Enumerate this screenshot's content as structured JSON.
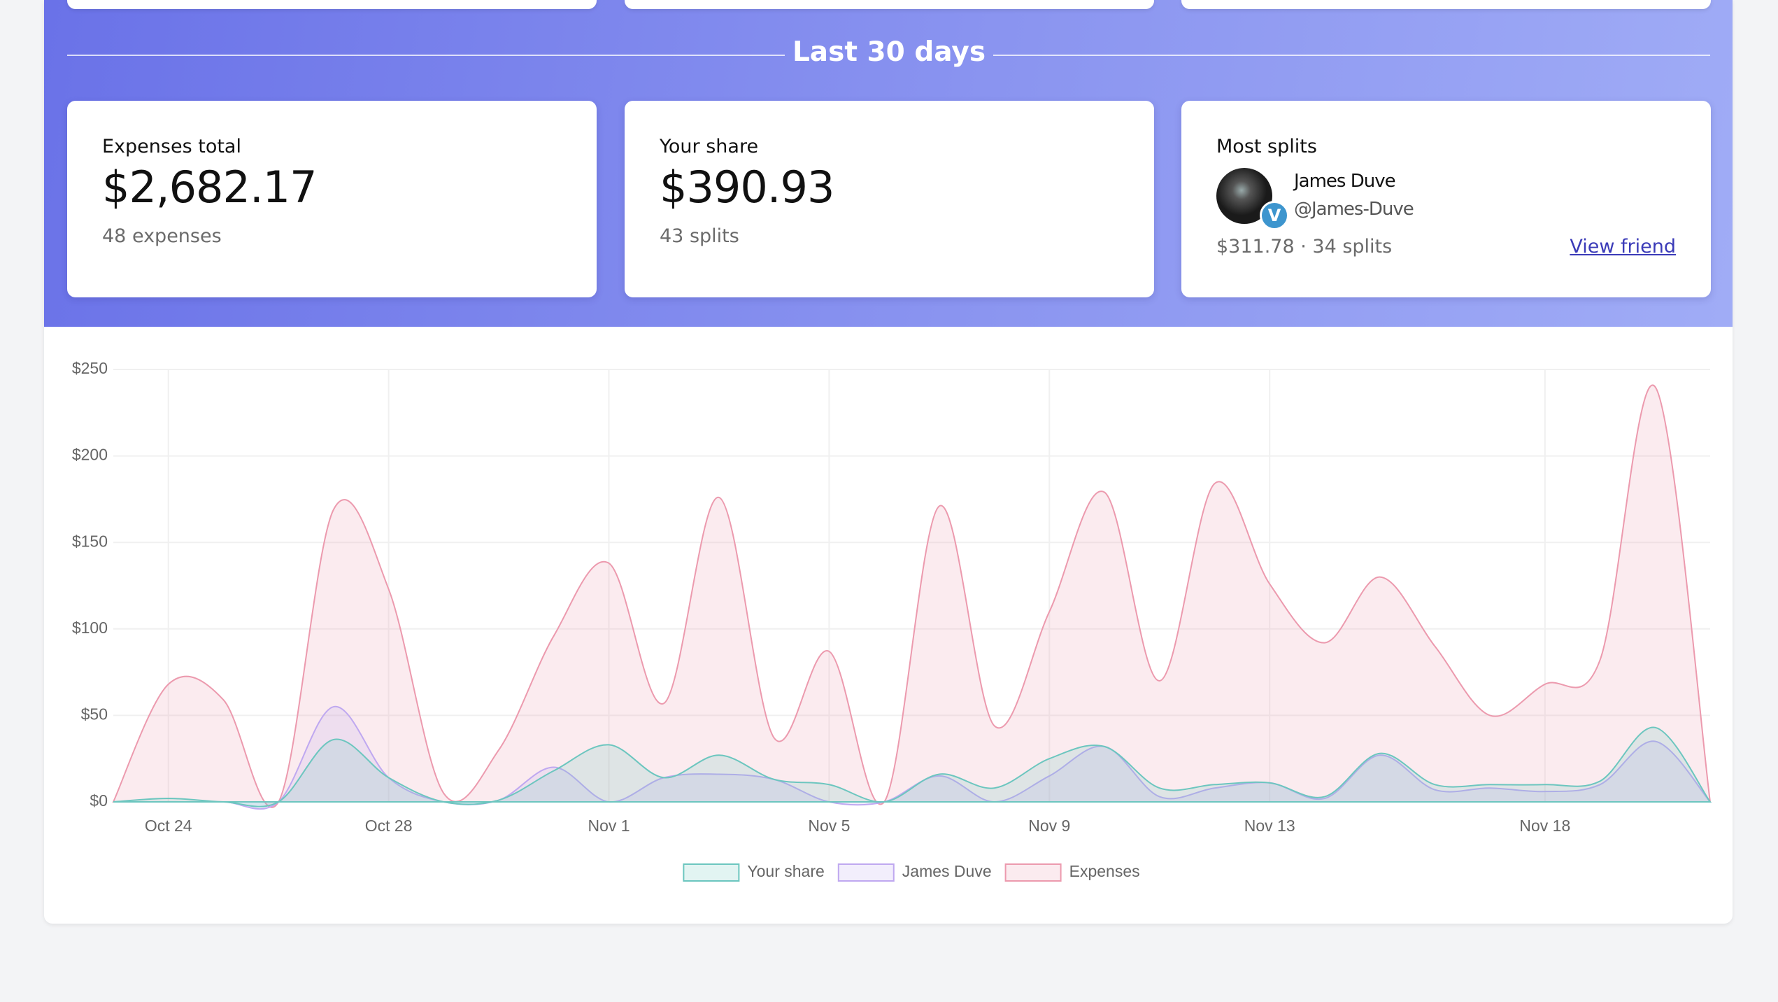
{
  "section_title": "Last 30 days",
  "cards": [
    {
      "label": "Expenses total",
      "value": "$2,682.17",
      "detail": "48 expenses"
    },
    {
      "label": "Your share",
      "value": "$390.93",
      "detail": "43 splits"
    },
    {
      "label": "Most splits",
      "name": "James Duve",
      "handle": "@James-Duve",
      "badge": "V",
      "detail": "$311.78 · 34 splits",
      "link": "View friend"
    }
  ],
  "chart_data": {
    "type": "area",
    "categories": [
      null,
      "Oct 24",
      null,
      null,
      null,
      "Oct 28",
      null,
      null,
      null,
      "Nov 1",
      null,
      null,
      null,
      "Nov 5",
      null,
      null,
      null,
      "Nov 9",
      null,
      null,
      null,
      "Nov 13",
      null,
      null,
      null,
      null,
      "Nov 18",
      null,
      null,
      null
    ],
    "series": [
      {
        "name": "Your share",
        "color": "#6cc6bf",
        "values": [
          0,
          2,
          0,
          0,
          36,
          14,
          0,
          1,
          18,
          33,
          14,
          27,
          13,
          10,
          0,
          16,
          8,
          25,
          32,
          8,
          10,
          11,
          3,
          28,
          10,
          10,
          10,
          12,
          43,
          0
        ]
      },
      {
        "name": "James Duve",
        "color": "#bfa8f0",
        "values": [
          0,
          0,
          0,
          0,
          55,
          14,
          0,
          1,
          20,
          0,
          14,
          16,
          13,
          0,
          0,
          15,
          0,
          15,
          32,
          3,
          8,
          11,
          2,
          27,
          7,
          8,
          6,
          10,
          35,
          0
        ]
      },
      {
        "name": "Expenses",
        "color": "#ec9aae",
        "values": [
          0,
          68,
          59,
          0,
          169,
          123,
          5,
          30,
          96,
          138,
          57,
          176,
          37,
          87,
          0,
          171,
          44,
          110,
          179,
          70,
          184,
          126,
          92,
          130,
          90,
          50,
          68,
          82,
          240,
          0
        ]
      }
    ],
    "ylim": [
      0,
      250
    ],
    "yticks": [
      {
        "value": 0,
        "label": "$0"
      },
      {
        "value": 50,
        "label": "$50"
      },
      {
        "value": 100,
        "label": "$100"
      },
      {
        "value": 150,
        "label": "$150"
      },
      {
        "value": 200,
        "label": "$200"
      },
      {
        "value": 250,
        "label": "$250"
      }
    ],
    "grid": true,
    "legend": "bottom"
  }
}
